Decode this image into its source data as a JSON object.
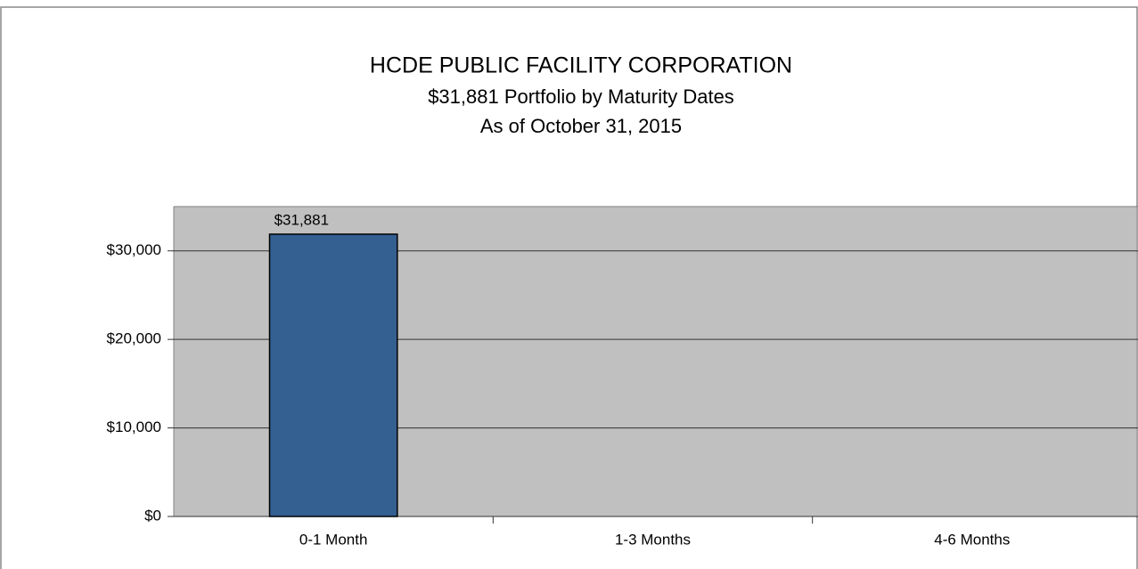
{
  "chart_data": {
    "type": "bar",
    "title": "HCDE PUBLIC FACILITY CORPORATION",
    "subtitle": [
      "$31,881 Portfolio by Maturity Dates",
      "As of October 31, 2015"
    ],
    "categories": [
      "0-1 Month",
      "1-3 Months",
      "4-6 Months"
    ],
    "values": [
      31881,
      null,
      null
    ],
    "value_labels": [
      "$31,881",
      null,
      null
    ],
    "color": "#335f91",
    "ylim": [
      0,
      35000
    ],
    "yticks": [
      {
        "value": 0,
        "label": "$0"
      },
      {
        "value": 10000,
        "label": "$10,000"
      },
      {
        "value": 20000,
        "label": "$20,000"
      },
      {
        "value": 30000,
        "label": "$30,000"
      }
    ],
    "grid": true
  }
}
